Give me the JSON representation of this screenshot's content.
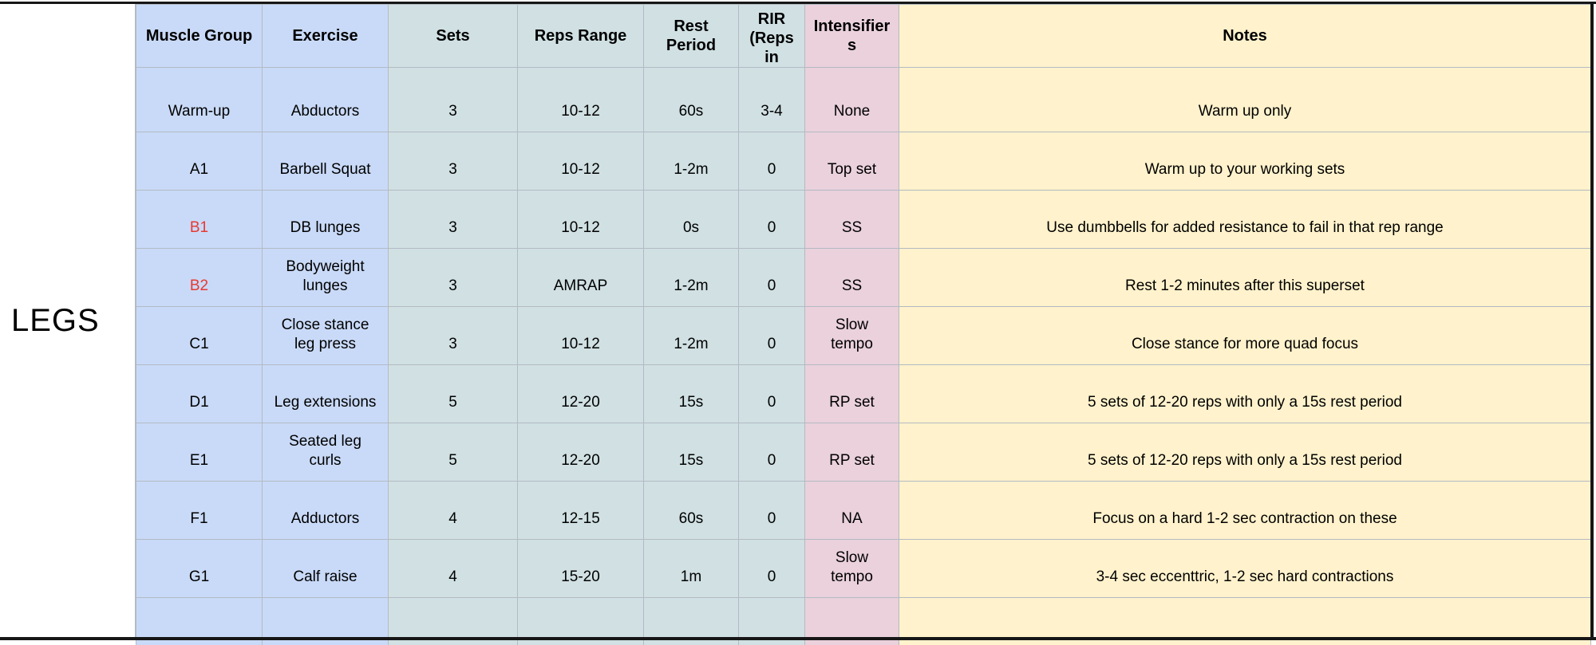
{
  "sheet": {
    "group_label": "LEGS",
    "columns": [
      "Muscle Group",
      "Exercise",
      "Sets",
      "Reps Range",
      "Rest Period",
      "RIR (Reps in",
      "Intensifiers",
      "Notes"
    ],
    "column_keys": [
      "muscle-group",
      "exercise",
      "sets",
      "reps-range",
      "rest-period",
      "rir",
      "intensifiers",
      "notes"
    ],
    "rows": [
      {
        "red_label": false,
        "cells": [
          "Warm-up",
          "Abductors",
          "3",
          "10-12",
          "60s",
          "3-4",
          "None",
          "Warm up only"
        ]
      },
      {
        "red_label": false,
        "cells": [
          "A1",
          "Barbell Squat",
          "3",
          "10-12",
          "1-2m",
          "0",
          "Top set",
          "Warm up to your working sets"
        ]
      },
      {
        "red_label": true,
        "cells": [
          "B1",
          "DB lunges",
          "3",
          "10-12",
          "0s",
          "0",
          "SS",
          "Use dumbbells for added resistance to fail in that rep range"
        ]
      },
      {
        "red_label": true,
        "cells": [
          "B2",
          "Bodyweight lunges",
          "3",
          "AMRAP",
          "1-2m",
          "0",
          "SS",
          "Rest 1-2 minutes after this superset"
        ]
      },
      {
        "red_label": false,
        "cells": [
          "C1",
          "Close stance leg press",
          "3",
          "10-12",
          "1-2m",
          "0",
          "Slow tempo",
          "Close stance for more quad focus"
        ]
      },
      {
        "red_label": false,
        "cells": [
          "D1",
          "Leg extensions",
          "5",
          "12-20",
          "15s",
          "0",
          "RP set",
          "5 sets of 12-20 reps with only a 15s rest period"
        ]
      },
      {
        "red_label": false,
        "cells": [
          "E1",
          "Seated leg curls",
          "5",
          "12-20",
          "15s",
          "0",
          "RP set",
          "5 sets of 12-20 reps with only a 15s rest period"
        ]
      },
      {
        "red_label": false,
        "cells": [
          "F1",
          "Adductors",
          "4",
          "12-15",
          "60s",
          "0",
          "NA",
          "Focus on a hard 1-2 sec contraction on these"
        ]
      },
      {
        "red_label": false,
        "cells": [
          "G1",
          "Calf raise",
          "4",
          "15-20",
          "1m",
          "0",
          "Slow tempo",
          "3-4 sec eccenttric, 1-2 sec hard contractions"
        ]
      },
      {
        "red_label": false,
        "cells": [
          "",
          "",
          "",
          "",
          "",
          "",
          "",
          ""
        ]
      }
    ],
    "colors": {
      "column_blue": "#c9daf8",
      "column_teal": "#d0e0e3",
      "column_pink": "#ead1dc",
      "column_yellow": "#fff2cc",
      "highlight_red": "#e8392f",
      "gridline_gray": "#b3bac3",
      "frame_black": "#161616"
    }
  }
}
